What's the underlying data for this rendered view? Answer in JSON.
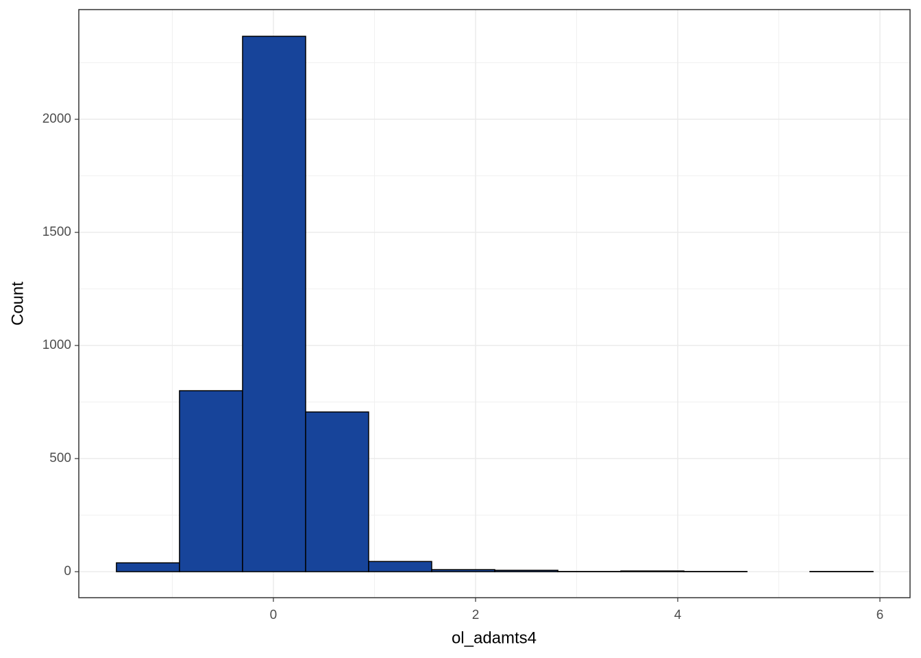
{
  "chart_data": {
    "type": "histogram",
    "x_label": "ol_adamts4",
    "y_label": "Count",
    "bins": [
      -1.553,
      -0.929,
      -0.305,
      0.319,
      0.942,
      1.566,
      2.19,
      2.814,
      3.437,
      4.061,
      4.685,
      5.308,
      5.932
    ],
    "values": [
      39,
      800,
      2367,
      706,
      45,
      9,
      6,
      1,
      3,
      1,
      0,
      1
    ],
    "color": "#17449a",
    "edge_color": "#000000",
    "xlim": [
      -1.925,
      6.298
    ],
    "xticks": [
      0,
      2,
      4,
      6
    ],
    "xminor": [
      -1,
      1,
      3,
      5
    ],
    "ylim": [
      -115,
      2485
    ],
    "yticks": [
      0,
      500,
      1000,
      1500,
      2000
    ],
    "yminor": [
      250,
      750,
      1250,
      1750,
      2250
    ],
    "grid": true
  }
}
